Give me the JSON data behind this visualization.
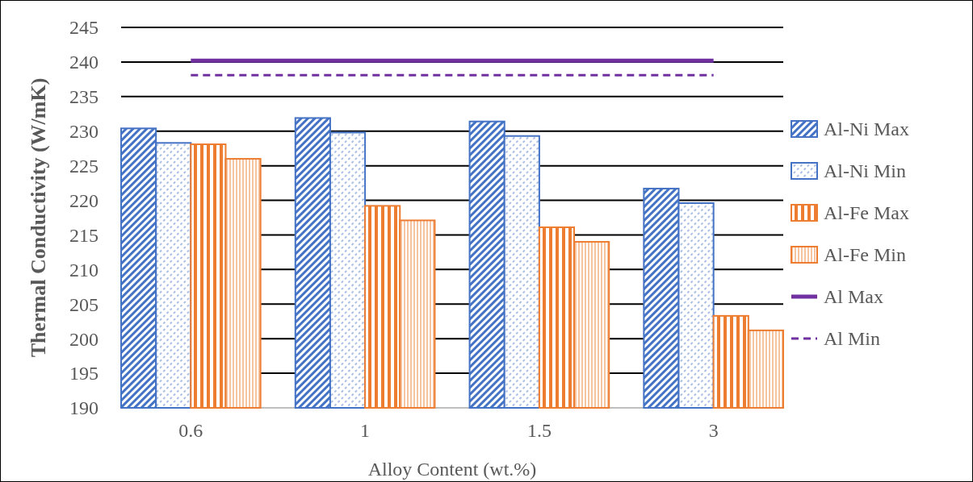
{
  "chart_data": {
    "type": "bar",
    "xlabel": "Alloy Content (wt.%)",
    "ylabel": "Thermal Conductivity (W/mK)",
    "categories": [
      "0.6",
      "1",
      "1.5",
      "3"
    ],
    "series": [
      {
        "name": "Al-Ni Max",
        "color": "#4472c4",
        "values": [
          230.4,
          231.9,
          231.4,
          221.7
        ]
      },
      {
        "name": "Al-Ni Min",
        "color": "#4472c4",
        "values": [
          228.3,
          229.8,
          229.3,
          219.6
        ]
      },
      {
        "name": "Al-Fe Max",
        "color": "#ed7d31",
        "values": [
          228.1,
          219.2,
          216.1,
          203.3
        ]
      },
      {
        "name": "Al-Fe Min",
        "color": "#ed7d31",
        "values": [
          226.0,
          217.1,
          214.0,
          201.2
        ]
      },
      {
        "name": "Al Max",
        "type": "line",
        "color": "#7030a0",
        "line_style": "solid",
        "values": [
          240.2,
          240.2,
          240.2,
          240.2
        ]
      },
      {
        "name": "Al Min",
        "type": "line",
        "color": "#7030a0",
        "line_style": "dashed",
        "values": [
          238.1,
          238.1,
          238.1,
          238.1
        ]
      }
    ],
    "ylim": [
      190,
      245
    ],
    "yticks": [
      190,
      195,
      200,
      205,
      210,
      215,
      220,
      225,
      230,
      235,
      240,
      245
    ],
    "grid": "y",
    "legend": "right"
  }
}
